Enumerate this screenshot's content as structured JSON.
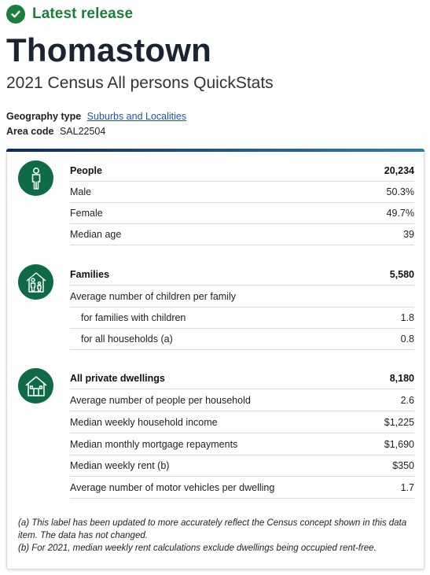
{
  "release": {
    "label": "Latest release"
  },
  "page": {
    "title": "Thomastown",
    "subtitle": "2021 Census All persons QuickStats"
  },
  "meta": {
    "geography_label": "Geography type",
    "geography_value": "Suburbs and Localities",
    "area_label": "Area code",
    "area_value": "SAL22504"
  },
  "people": {
    "icon": "person-icon",
    "header": {
      "label": "People",
      "value": "20,234"
    },
    "rows": [
      {
        "label": "Male",
        "value": "50.3%"
      },
      {
        "label": "Female",
        "value": "49.7%"
      },
      {
        "label": "Median age",
        "value": "39"
      }
    ]
  },
  "families": {
    "icon": "family-icon",
    "header": {
      "label": "Families",
      "value": "5,580"
    },
    "rows": [
      {
        "label": "Average number of children per family",
        "value": ""
      },
      {
        "label": "for families with children",
        "value": "1.8"
      },
      {
        "label": "for all households (a)",
        "value": "0.8"
      }
    ]
  },
  "dwellings": {
    "icon": "house-icon",
    "header": {
      "label": "All private dwellings",
      "value": "8,180"
    },
    "rows": [
      {
        "label": "Average number of people per household",
        "value": "2.6"
      },
      {
        "label": "Median weekly household income",
        "value": "$1,225"
      },
      {
        "label": "Median monthly mortgage repayments",
        "value": "$1,690"
      },
      {
        "label": "Median weekly rent (b)",
        "value": "$350"
      },
      {
        "label": "Average number of motor vehicles per dwelling",
        "value": "1.7"
      }
    ]
  },
  "footnotes": {
    "a": "(a) This label has been updated to more accurately reflect the Census concept shown in this data item. The data has not changed.",
    "b": "(b) For 2021, median weekly rent calculations exclude dwellings being occupied rent-free."
  },
  "colors": {
    "release_green": "#1a7f3c",
    "icon_green": "#0f6b47",
    "title_navy": "#1c2433",
    "link_blue": "#1a56a8"
  }
}
